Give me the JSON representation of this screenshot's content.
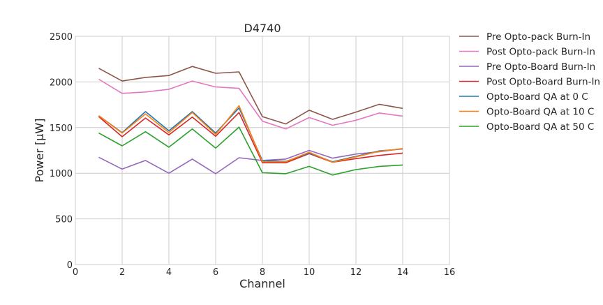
{
  "chart_data": {
    "type": "line",
    "title": "D4740",
    "xlabel": "Channel",
    "ylabel": "Power [µW]",
    "xlim": [
      0,
      16
    ],
    "ylim": [
      0,
      2500
    ],
    "xticks": [
      0,
      2,
      4,
      6,
      8,
      10,
      12,
      14,
      16
    ],
    "yticks": [
      0,
      500,
      1000,
      1500,
      2000,
      2500
    ],
    "grid": true,
    "legend_position": "outside-right",
    "x": [
      1,
      2,
      3,
      4,
      5,
      6,
      7,
      8,
      9,
      10,
      11,
      12,
      13,
      14
    ],
    "series": [
      {
        "name": "Pre Opto-pack Burn-In",
        "color": "#8c564b",
        "values": [
          2150,
          2010,
          2050,
          2070,
          2170,
          2095,
          2110,
          1620,
          1540,
          1690,
          1590,
          1670,
          1755,
          1710
        ]
      },
      {
        "name": "Post Opto-pack Burn-In",
        "color": "#e377c2",
        "values": [
          2030,
          1875,
          1890,
          1920,
          2010,
          1945,
          1930,
          1570,
          1485,
          1610,
          1525,
          1580,
          1660,
          1625
        ]
      },
      {
        "name": "Pre Opto-Board Burn-In",
        "color": "#9467bd",
        "values": [
          1175,
          1045,
          1140,
          1000,
          1155,
          995,
          1170,
          1140,
          1155,
          1250,
          1165,
          1210,
          1235,
          1270
        ]
      },
      {
        "name": "Post Opto-Board Burn-In",
        "color": "#d62728",
        "values": [
          1620,
          1400,
          1605,
          1420,
          1615,
          1405,
          1665,
          1115,
          1115,
          1215,
          1120,
          1160,
          1195,
          1220
        ]
      },
      {
        "name": "Opto-Board QA at 0 C",
        "color": "#1f77b4",
        "values": [
          1630,
          1445,
          1675,
          1465,
          1675,
          1440,
          1715,
          1140,
          1130,
          1220,
          1125,
          1185,
          1245,
          1265
        ]
      },
      {
        "name": "Opto-Board QA at 10 C",
        "color": "#ff7f0e",
        "values": [
          1630,
          1440,
          1650,
          1445,
          1665,
          1425,
          1740,
          1125,
          1125,
          1230,
          1120,
          1180,
          1240,
          1270
        ]
      },
      {
        "name": "Opto-Board QA at 50 C",
        "color": "#2ca02c",
        "values": [
          1440,
          1300,
          1455,
          1285,
          1485,
          1275,
          1505,
          1005,
          995,
          1075,
          980,
          1040,
          1075,
          1090
        ]
      }
    ]
  }
}
